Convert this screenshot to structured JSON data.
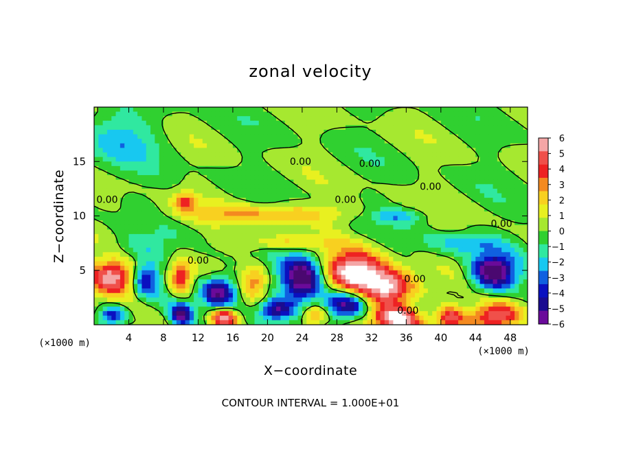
{
  "chart_data": {
    "type": "heatmap",
    "title": "zonal velocity",
    "xlabel": "X−coordinate",
    "ylabel": "Z−coordinate",
    "x_unit": "(×1000 m)",
    "y_unit": "(×1000 m)",
    "xlim": [
      0,
      50
    ],
    "ylim": [
      0,
      20
    ],
    "x_ticks": [
      4,
      8,
      12,
      16,
      20,
      24,
      28,
      32,
      36,
      40,
      44,
      48
    ],
    "x_tick_labels": [
      "4",
      "8",
      "12",
      "16",
      "20",
      "24",
      "28",
      "32",
      "36",
      "40",
      "44",
      "48"
    ],
    "y_ticks": [
      5,
      10,
      15
    ],
    "y_tick_labels": [
      "5",
      "10",
      "15"
    ],
    "colorbar": {
      "min": -6,
      "max": 6,
      "ticks": [
        6,
        5,
        4,
        3,
        2,
        1,
        0,
        -1,
        -2,
        -3,
        -4,
        -5,
        -6
      ],
      "tick_labels": [
        "6",
        "5",
        "4",
        "3",
        "2",
        "1",
        "0",
        "−1",
        "−2",
        "−3",
        "−4",
        "−5",
        "−6"
      ],
      "colors": [
        "#f4a6a6",
        "#f0504a",
        "#ee2222",
        "#f48a20",
        "#f8d020",
        "#e8f020",
        "#a6e830",
        "#30d030",
        "#30e8a0",
        "#18c8f0",
        "#1060e0",
        "#0a10c0",
        "#1a0c90",
        "#6a0a9a"
      ]
    },
    "contour_level": 0,
    "contour_labels": [
      {
        "text": "0.00",
        "x": 1.5,
        "z": 11.2
      },
      {
        "text": "0.00",
        "x": 23.8,
        "z": 14.7
      },
      {
        "text": "0.00",
        "x": 31.8,
        "z": 14.5
      },
      {
        "text": "0.00",
        "x": 29.0,
        "z": 11.2
      },
      {
        "text": "0.00",
        "x": 38.8,
        "z": 12.4
      },
      {
        "text": "0.00",
        "x": 47.0,
        "z": 9.0
      },
      {
        "text": "0.00",
        "x": 12.0,
        "z": 5.6
      },
      {
        "text": "0.00",
        "x": 37.0,
        "z": 3.9
      },
      {
        "text": "0.00",
        "x": 36.2,
        "z": 1.0
      }
    ],
    "field_features": [
      {
        "x": 2.0,
        "z": 4.3,
        "sx": 2.6,
        "sz": 1.5,
        "v": 6.0
      },
      {
        "x": 6.0,
        "z": 4.3,
        "sx": 1.5,
        "sz": 1.5,
        "v": -4.5
      },
      {
        "x": 10.0,
        "z": 4.3,
        "sx": 1.3,
        "sz": 1.6,
        "v": 4.5
      },
      {
        "x": 14.5,
        "z": 3.0,
        "sx": 2.0,
        "sz": 1.4,
        "v": -6.5
      },
      {
        "x": 18.5,
        "z": 4.0,
        "sx": 1.4,
        "sz": 1.4,
        "v": 3.0
      },
      {
        "x": 24.0,
        "z": 4.2,
        "sx": 2.3,
        "sz": 2.0,
        "v": -7.0
      },
      {
        "x": 30.0,
        "z": 4.8,
        "sx": 3.4,
        "sz": 1.8,
        "v": 7.0
      },
      {
        "x": 34.0,
        "z": 3.3,
        "sx": 3.0,
        "sz": 1.6,
        "v": 6.5
      },
      {
        "x": 29.0,
        "z": 1.8,
        "sx": 2.6,
        "sz": 1.3,
        "v": -6.5
      },
      {
        "x": 35.0,
        "z": 0.5,
        "sx": 3.0,
        "sz": 1.2,
        "v": 6.5
      },
      {
        "x": 46.0,
        "z": 4.8,
        "sx": 2.5,
        "sz": 1.6,
        "v": -7.0
      },
      {
        "x": 46.5,
        "z": 0.8,
        "sx": 3.0,
        "sz": 1.2,
        "v": 6.0
      },
      {
        "x": 41.0,
        "z": 0.6,
        "sx": 1.5,
        "sz": 1.0,
        "v": 5.0
      },
      {
        "x": 15.0,
        "z": 0.6,
        "sx": 1.5,
        "sz": 0.9,
        "v": 6.0
      },
      {
        "x": 10.0,
        "z": 0.9,
        "sx": 1.2,
        "sz": 1.0,
        "v": -6.0
      },
      {
        "x": 2.0,
        "z": 0.8,
        "sx": 1.6,
        "sz": 0.9,
        "v": -5.0
      },
      {
        "x": 21.0,
        "z": 1.4,
        "sx": 1.8,
        "sz": 0.9,
        "v": -5.5
      },
      {
        "x": 25.5,
        "z": 0.8,
        "sx": 1.5,
        "sz": 0.9,
        "v": 4.0
      },
      {
        "x": 20.0,
        "z": 10.2,
        "sx": 9.0,
        "sz": 0.9,
        "v": 2.8
      },
      {
        "x": 10.5,
        "z": 11.3,
        "sx": 1.2,
        "sz": 0.8,
        "v": 3.5
      },
      {
        "x": 22.0,
        "z": 7.5,
        "sx": 6.0,
        "sz": 0.6,
        "v": 2.2
      },
      {
        "x": 3.0,
        "z": 17.0,
        "sx": 4.5,
        "sz": 2.5,
        "v": -2.0
      },
      {
        "x": 35.0,
        "z": 10.0,
        "sx": 3.0,
        "sz": 0.6,
        "v": -2.5
      },
      {
        "x": 43.0,
        "z": 7.5,
        "sx": 4.0,
        "sz": 0.9,
        "v": -2.5
      },
      {
        "x": 5.0,
        "z": 7.0,
        "sx": 3.5,
        "sz": 1.2,
        "v": -1.5
      }
    ]
  },
  "footer_text": "CONTOUR INTERVAL = 1.000E+01"
}
